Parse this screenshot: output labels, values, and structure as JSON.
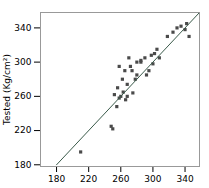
{
  "chart_data": {
    "type": "scatter",
    "ylabel": "Tested (Kg/cm²)",
    "series": [
      {
        "type": "scatter",
        "marker": "square",
        "color": "#4a4a4a",
        "x": [
          210,
          248,
          250,
          252,
          255,
          256,
          258,
          260,
          262,
          263,
          265,
          266,
          268,
          258,
          270,
          272,
          274,
          278,
          280,
          268,
          285,
          275,
          280,
          290,
          292,
          295,
          285,
          298,
          300,
          302,
          305,
          308,
          318,
          325,
          330,
          335,
          340,
          342,
          345
        ],
        "values": [
          195,
          225,
          222,
          262,
          248,
          270,
          258,
          260,
          280,
          265,
          290,
          256,
          274,
          295,
          305,
          295,
          290,
          280,
          300,
          260,
          302,
          264,
          285,
          305,
          285,
          290,
          300,
          308,
          298,
          310,
          315,
          305,
          330,
          335,
          340,
          342,
          338,
          345,
          330
        ]
      },
      {
        "type": "line",
        "color": "#3a5a4a",
        "x": [
          180,
          358
        ],
        "values": [
          180,
          358
        ]
      }
    ],
    "xlim": [
      160,
      358
    ],
    "ylim": [
      178,
      358
    ],
    "xticks": [
      180,
      220,
      260,
      300,
      340
    ],
    "yticks": [
      180,
      220,
      260,
      300,
      340
    ]
  }
}
